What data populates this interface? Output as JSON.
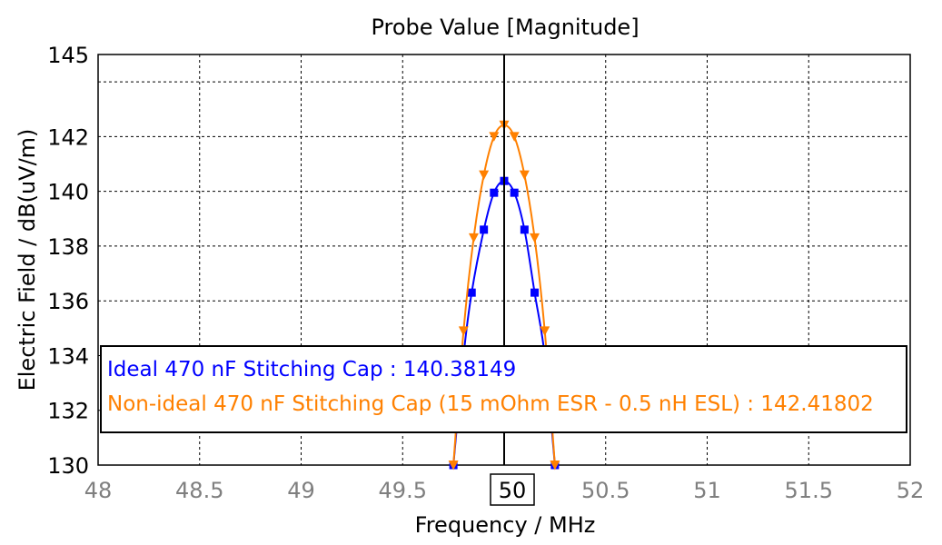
{
  "chart_data": {
    "type": "line",
    "title": "Probe Value [Magnitude]",
    "xlabel": "Frequency / MHz",
    "ylabel": "Electric Field / dB(uV/m)",
    "xlim": [
      48,
      52
    ],
    "ylim": [
      130,
      145
    ],
    "x_ticks": [
      "48",
      "48.5",
      "49",
      "49.5",
      "50",
      "50.5",
      "51",
      "51.5",
      "52"
    ],
    "x_tick_values": [
      48,
      48.5,
      49,
      49.5,
      50,
      50.5,
      51,
      51.5,
      52
    ],
    "y_ticks": [
      "130",
      "132",
      "134",
      "136",
      "138",
      "140",
      "142",
      "145"
    ],
    "y_tick_values": [
      130,
      132,
      134,
      136,
      138,
      140,
      142,
      145
    ],
    "y_gridlines": [
      130,
      132,
      134,
      136,
      138,
      140,
      142,
      144,
      145
    ],
    "grid": true,
    "cursor_x": 50,
    "cursor_label": "50",
    "legend_position": "lower-center",
    "series": [
      {
        "name": "Ideal 470 nF Stitching Cap",
        "readout": "140.38149",
        "color": "#0000ff",
        "marker": "square",
        "x": [
          49.75,
          49.8,
          49.84,
          49.9,
          49.95,
          50.0,
          50.05,
          50.1,
          50.15,
          50.2,
          50.25
        ],
        "y": [
          130,
          134,
          136.3,
          138.6,
          139.95,
          140.38,
          139.95,
          138.6,
          136.3,
          134,
          130
        ]
      },
      {
        "name": "Non-ideal 470 nF Stitching Cap (15 mOhm ESR - 0.5 nH ESL)",
        "readout": "142.41802",
        "color": "#ff8000",
        "marker": "triangle-down",
        "x": [
          49.75,
          49.8,
          49.85,
          49.9,
          49.95,
          50.0,
          50.05,
          50.1,
          50.15,
          50.2,
          50.25
        ],
        "y": [
          130,
          134.9,
          138.3,
          140.6,
          142.0,
          142.42,
          142.0,
          140.6,
          138.3,
          134.9,
          130
        ]
      }
    ]
  }
}
